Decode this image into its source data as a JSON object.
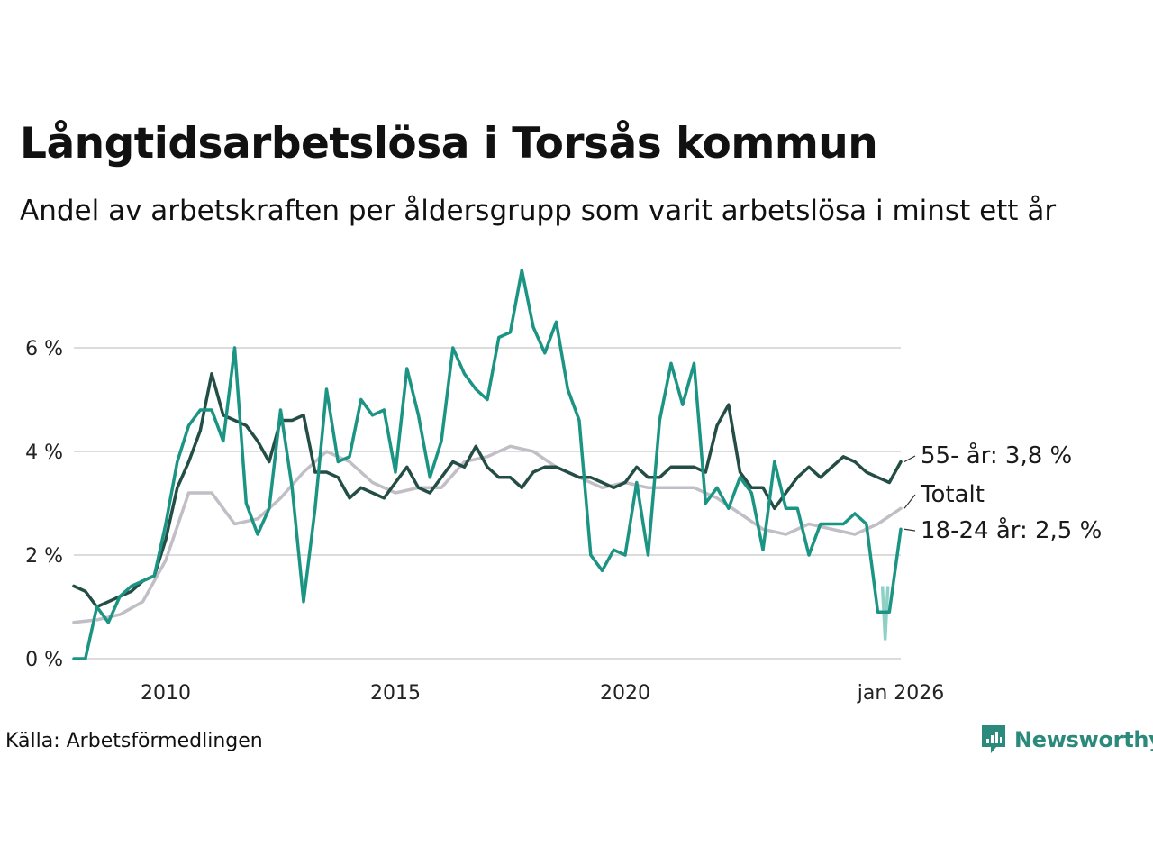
{
  "title": "Långtidsarbetslösa i Torsås kommun",
  "subtitle": "Andel av arbetskraften per åldersgrupp som varit arbetslösa i minst ett år",
  "source": "Källa: Arbetsförmedlingen",
  "brand": "Newsworthy",
  "colors": {
    "young": "#1b9484",
    "old": "#234d45",
    "total": "#c1bec6",
    "young_light": "#8fd0c6",
    "grid": "#dcdcdc",
    "brand": "#2b8a7b"
  },
  "chart_data": {
    "type": "line",
    "x_range": [
      2008.0,
      2026.0
    ],
    "ylim": [
      0,
      7.6
    ],
    "y_ticks": [
      0,
      2,
      4,
      6
    ],
    "y_tick_labels": [
      "0 %",
      "2 %",
      "4 %",
      "6 %"
    ],
    "x_ticks": [
      2010,
      2015,
      2020,
      2026
    ],
    "x_tick_labels": [
      "2010",
      "2015",
      "2020",
      "jan 2026"
    ],
    "grid": true,
    "series": [
      {
        "name": "Totalt",
        "label": "Totalt",
        "color": "#c1bec6",
        "x": [
          2008.0,
          2008.5,
          2009.0,
          2009.5,
          2010.0,
          2010.5,
          2011.0,
          2011.5,
          2012.0,
          2012.5,
          2013.0,
          2013.5,
          2014.0,
          2014.5,
          2015.0,
          2015.5,
          2016.0,
          2016.5,
          2017.0,
          2017.5,
          2018.0,
          2018.5,
          2019.0,
          2019.5,
          2020.0,
          2020.5,
          2021.0,
          2021.5,
          2022.0,
          2022.5,
          2023.0,
          2023.5,
          2024.0,
          2024.5,
          2025.0,
          2025.5,
          2026.0
        ],
        "values": [
          0.7,
          0.75,
          0.85,
          1.1,
          1.9,
          3.2,
          3.2,
          2.6,
          2.7,
          3.1,
          3.6,
          4.0,
          3.8,
          3.4,
          3.2,
          3.3,
          3.3,
          3.8,
          3.9,
          4.1,
          4.0,
          3.7,
          3.5,
          3.3,
          3.4,
          3.3,
          3.3,
          3.3,
          3.1,
          2.8,
          2.5,
          2.4,
          2.6,
          2.5,
          2.4,
          2.6,
          2.9
        ]
      },
      {
        "name": "55- år",
        "label": "55- år: 3,8 %",
        "color": "#234d45",
        "x": [
          2008.0,
          2008.25,
          2008.5,
          2008.75,
          2009.0,
          2009.25,
          2009.5,
          2009.75,
          2010.0,
          2010.25,
          2010.5,
          2010.75,
          2011.0,
          2011.25,
          2011.5,
          2011.75,
          2012.0,
          2012.25,
          2012.5,
          2012.75,
          2013.0,
          2013.25,
          2013.5,
          2013.75,
          2014.0,
          2014.25,
          2014.5,
          2014.75,
          2015.0,
          2015.25,
          2015.5,
          2015.75,
          2016.0,
          2016.25,
          2016.5,
          2016.75,
          2017.0,
          2017.25,
          2017.5,
          2017.75,
          2018.0,
          2018.25,
          2018.5,
          2018.75,
          2019.0,
          2019.25,
          2019.5,
          2019.75,
          2020.0,
          2020.25,
          2020.5,
          2020.75,
          2021.0,
          2021.25,
          2021.5,
          2021.75,
          2022.0,
          2022.25,
          2022.5,
          2022.75,
          2023.0,
          2023.25,
          2023.5,
          2023.75,
          2024.0,
          2024.25,
          2024.5,
          2024.75,
          2025.0,
          2025.25,
          2025.5,
          2025.75,
          2026.0
        ],
        "values": [
          1.4,
          1.3,
          1.0,
          1.1,
          1.2,
          1.3,
          1.5,
          1.6,
          2.3,
          3.3,
          3.8,
          4.4,
          5.5,
          4.7,
          4.6,
          4.5,
          4.2,
          3.8,
          4.6,
          4.6,
          4.7,
          3.6,
          3.6,
          3.5,
          3.1,
          3.3,
          3.2,
          3.1,
          3.4,
          3.7,
          3.3,
          3.2,
          3.5,
          3.8,
          3.7,
          4.1,
          3.7,
          3.5,
          3.5,
          3.3,
          3.6,
          3.7,
          3.7,
          3.6,
          3.5,
          3.5,
          3.4,
          3.3,
          3.4,
          3.7,
          3.5,
          3.5,
          3.7,
          3.7,
          3.7,
          3.6,
          4.5,
          4.9,
          3.6,
          3.3,
          3.3,
          2.9,
          3.2,
          3.5,
          3.7,
          3.5,
          3.7,
          3.9,
          3.8,
          3.6,
          3.5,
          3.4,
          3.8
        ]
      },
      {
        "name": "18-24 år",
        "label": "18-24 år: 2,5 %",
        "color": "#1b9484",
        "x": [
          2008.0,
          2008.25,
          2008.5,
          2008.75,
          2009.0,
          2009.25,
          2009.5,
          2009.75,
          2010.0,
          2010.25,
          2010.5,
          2010.75,
          2011.0,
          2011.25,
          2011.5,
          2011.75,
          2012.0,
          2012.25,
          2012.5,
          2012.75,
          2013.0,
          2013.25,
          2013.5,
          2013.75,
          2014.0,
          2014.25,
          2014.5,
          2014.75,
          2015.0,
          2015.25,
          2015.5,
          2015.75,
          2016.0,
          2016.25,
          2016.5,
          2016.75,
          2017.0,
          2017.25,
          2017.5,
          2017.75,
          2018.0,
          2018.25,
          2018.5,
          2018.75,
          2019.0,
          2019.25,
          2019.5,
          2019.75,
          2020.0,
          2020.25,
          2020.5,
          2020.75,
          2021.0,
          2021.25,
          2021.5,
          2021.75,
          2022.0,
          2022.25,
          2022.5,
          2022.75,
          2023.0,
          2023.25,
          2023.5,
          2023.75,
          2024.0,
          2024.25,
          2024.5,
          2024.75,
          2025.0,
          2025.25,
          2025.5,
          2025.75,
          2026.0
        ],
        "values": [
          0,
          0,
          1.0,
          0.7,
          1.2,
          1.4,
          1.5,
          1.6,
          2.6,
          3.8,
          4.5,
          4.8,
          4.8,
          4.2,
          6.0,
          3.0,
          2.4,
          2.9,
          4.8,
          3.3,
          1.1,
          2.9,
          5.2,
          3.8,
          3.9,
          5.0,
          4.7,
          4.8,
          3.6,
          5.6,
          4.7,
          3.5,
          4.2,
          6.0,
          5.5,
          5.2,
          5.0,
          6.2,
          6.3,
          7.5,
          6.4,
          5.9,
          6.5,
          5.2,
          4.6,
          2.0,
          1.7,
          2.1,
          2.0,
          3.4,
          2.0,
          4.6,
          5.7,
          4.9,
          5.7,
          3.0,
          3.3,
          2.9,
          3.5,
          3.2,
          2.1,
          3.8,
          2.9,
          2.9,
          2.0,
          2.6,
          2.6,
          2.6,
          2.8,
          2.6,
          0.9,
          0.9,
          2.5
        ]
      }
    ]
  }
}
